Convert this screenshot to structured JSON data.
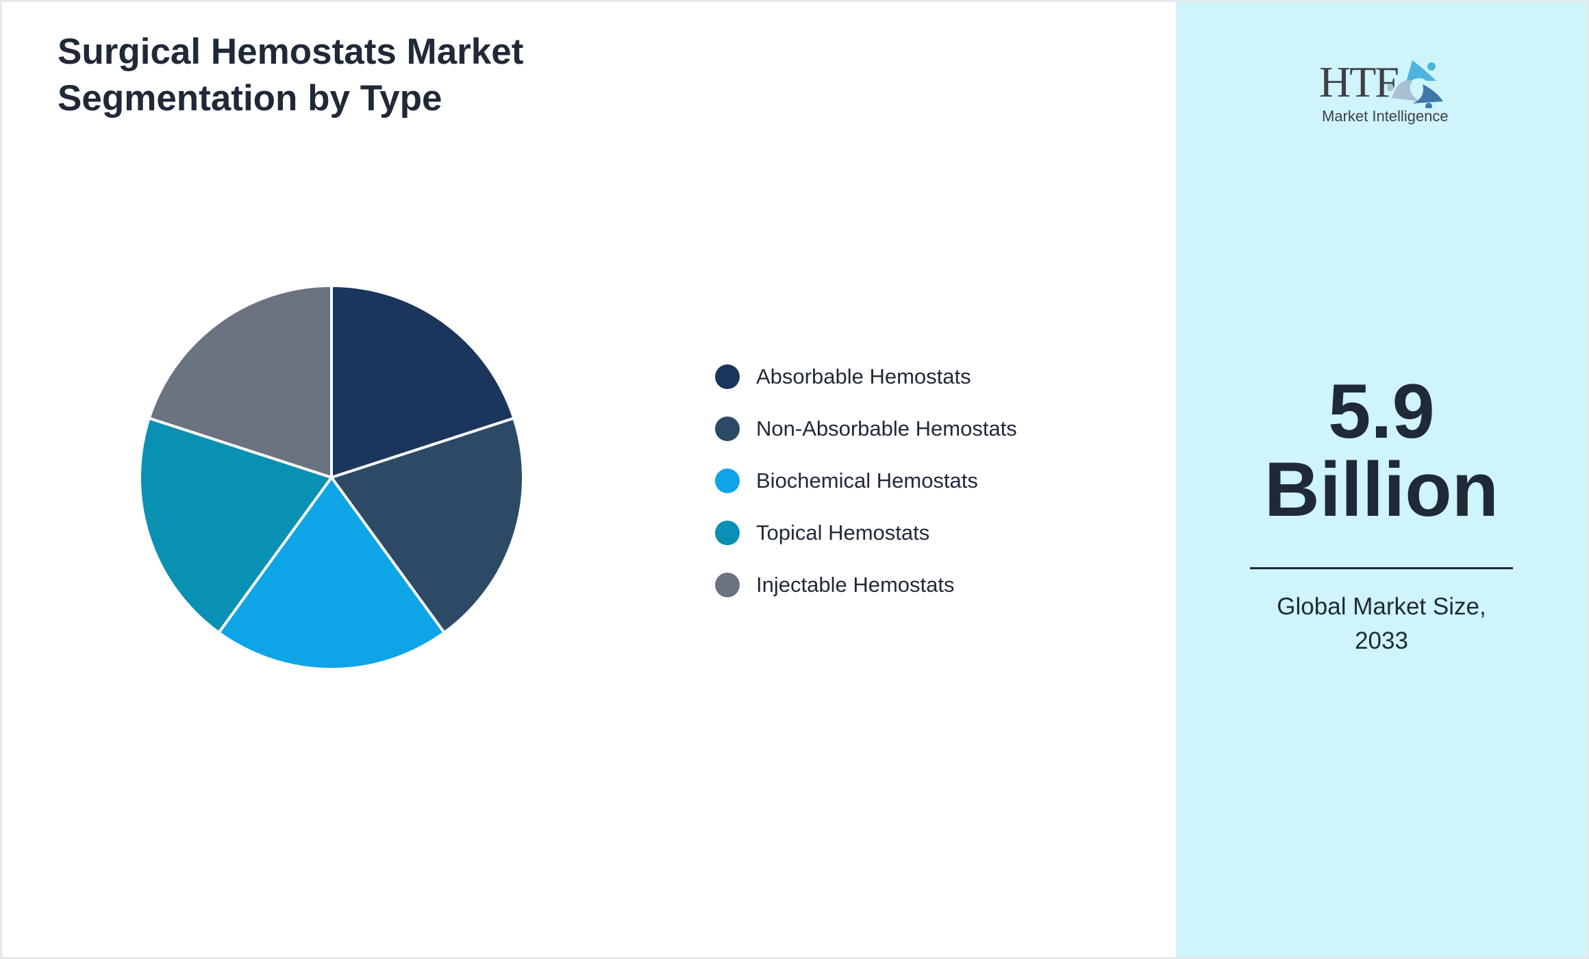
{
  "chart_data": {
    "type": "pie",
    "title": "Surgical Hemostats Market Segmentation by Type",
    "categories": [
      "Absorbable Hemostats",
      "Non-Absorbable Hemostats",
      "Biochemical Hemostats",
      "Topical Hemostats",
      "Injectable Hemostats"
    ],
    "values": [
      20,
      20,
      20,
      20,
      20
    ],
    "colors": [
      "#1b365d",
      "#2c4a66",
      "#0ea5e6",
      "#0891b2",
      "#6b7280"
    ],
    "legend_position": "right"
  },
  "side_panel": {
    "logo_text": "HTF",
    "logo_subtext": "Market Intelligence",
    "value": "5.9",
    "unit": "Billion",
    "caption_line1": "Global Market Size,",
    "caption_line2": "2033"
  }
}
